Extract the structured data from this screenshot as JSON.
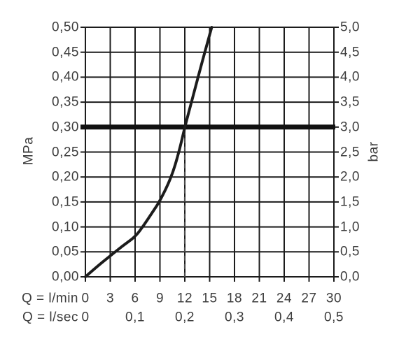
{
  "chart_data": {
    "type": "line",
    "title": "",
    "grid": true,
    "background": "#ffffff",
    "colors": {
      "line": "#1c1c1c",
      "text": "#3d3d3d",
      "dashed_line": "#4a4a4a",
      "bold_line": "#111111"
    },
    "left_axis": {
      "label": "MPa",
      "range": [
        0,
        0.5
      ],
      "tick_step": 0.05,
      "ticks": [
        "0,50",
        "0,45",
        "0,40",
        "0,35",
        "0,30",
        "0,25",
        "0,20",
        "0,15",
        "0,10",
        "0,05",
        "0,00"
      ]
    },
    "right_axis": {
      "label": "bar",
      "range": [
        0,
        5
      ],
      "tick_step": 0.5,
      "ticks": [
        "5,0",
        "4,5",
        "4,0",
        "3,5",
        "3,0",
        "2,5",
        "2,0",
        "1,5",
        "1,0",
        "0,5",
        "0,0"
      ]
    },
    "bottom_axis_lmin": {
      "label": "Q = l/min",
      "range": [
        0,
        30
      ],
      "tick_step": 3,
      "ticks": [
        "0",
        "3",
        "6",
        "9",
        "12",
        "15",
        "18",
        "21",
        "24",
        "27",
        "30"
      ],
      "tick_positions": [
        0,
        3,
        6,
        9,
        12,
        15,
        18,
        21,
        24,
        27,
        30
      ]
    },
    "bottom_axis_lsec": {
      "label": "Q = l/sec",
      "ticks": [
        "0",
        "0,1",
        "0,2",
        "0,3",
        "0,4",
        "0,5"
      ],
      "tick_positions_lmin": [
        0,
        6,
        12,
        18,
        24,
        30
      ]
    },
    "curve_points_lmin_mpa": [
      [
        0,
        0
      ],
      [
        1.5,
        0.022
      ],
      [
        3,
        0.042
      ],
      [
        4.5,
        0.062
      ],
      [
        6,
        0.08
      ],
      [
        7,
        0.102
      ],
      [
        8,
        0.127
      ],
      [
        9,
        0.152
      ],
      [
        10.4,
        0.2
      ],
      [
        11.3,
        0.25
      ],
      [
        12,
        0.3
      ],
      [
        13,
        0.362
      ],
      [
        14,
        0.425
      ],
      [
        15.25,
        0.5
      ]
    ],
    "reference_pressure_line_mpa": 0.3,
    "reference_flow_dashed_lmin": 12
  }
}
